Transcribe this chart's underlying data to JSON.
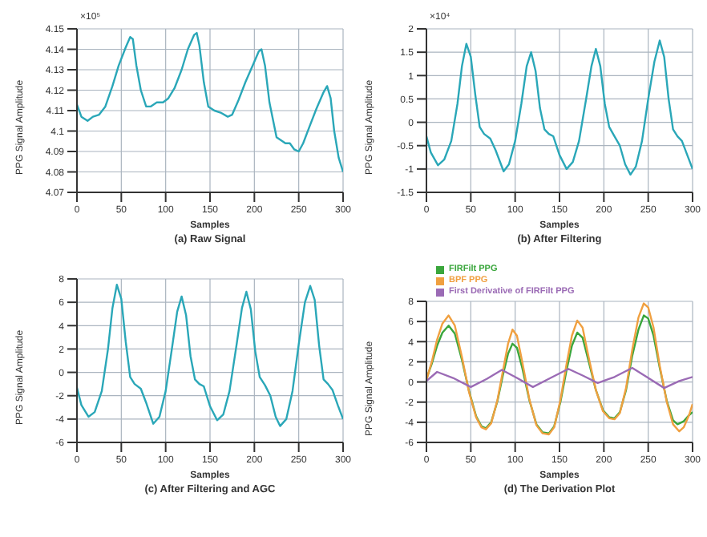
{
  "chart_data": [
    {
      "type": "line",
      "title": "(a) Raw Signal",
      "xlabel": "Samples",
      "ylabel": "PPG Signal Amplitude",
      "annotations": [
        "×10⁵"
      ],
      "xlim": [
        0,
        300
      ],
      "xticks": [
        0,
        50,
        100,
        150,
        200,
        250,
        300
      ],
      "ylim": [
        4.07,
        4.15
      ],
      "yticks": [
        4.07,
        4.08,
        4.09,
        4.1,
        4.11,
        4.12,
        4.13,
        4.14,
        4.15
      ],
      "grid": true,
      "marker": "none",
      "series": [
        {
          "color": "#2aa7b8",
          "x": [
            0,
            5,
            12,
            18,
            25,
            32,
            40,
            47,
            55,
            60,
            63,
            67,
            72,
            78,
            83,
            90,
            97,
            103,
            110,
            118,
            125,
            132,
            135,
            138,
            143,
            148,
            155,
            162,
            170,
            175,
            182,
            190,
            198,
            205,
            208,
            212,
            217,
            225,
            235,
            240,
            245,
            250,
            255,
            262,
            270,
            278,
            282,
            286,
            290,
            295,
            300
          ],
          "values": [
            4.113,
            4.107,
            4.105,
            4.107,
            4.108,
            4.112,
            4.122,
            4.132,
            4.141,
            4.146,
            4.145,
            4.132,
            4.12,
            4.112,
            4.112,
            4.114,
            4.114,
            4.116,
            4.121,
            4.13,
            4.14,
            4.147,
            4.148,
            4.142,
            4.124,
            4.112,
            4.11,
            4.109,
            4.107,
            4.108,
            4.115,
            4.124,
            4.132,
            4.139,
            4.14,
            4.132,
            4.114,
            4.097,
            4.094,
            4.094,
            4.091,
            4.09,
            4.094,
            4.102,
            4.111,
            4.119,
            4.122,
            4.116,
            4.1,
            4.087,
            4.08
          ]
        }
      ]
    },
    {
      "type": "line",
      "title": "(b) After Filtering",
      "xlabel": "Samples",
      "ylabel": "PPG Signal Amplitude",
      "annotations": [
        "×10⁴"
      ],
      "xlim": [
        0,
        300
      ],
      "xticks": [
        0,
        50,
        100,
        150,
        200,
        250,
        300
      ],
      "ylim": [
        -1.5,
        2
      ],
      "yticks": [
        -1.5,
        -1,
        -0.5,
        0,
        0.5,
        1,
        1.5,
        2
      ],
      "grid": true,
      "marker": "none",
      "series": [
        {
          "color": "#2aa7b8",
          "x": [
            0,
            5,
            13,
            20,
            28,
            35,
            40,
            45,
            50,
            55,
            60,
            65,
            72,
            78,
            87,
            93,
            100,
            107,
            113,
            118,
            123,
            128,
            133,
            138,
            143,
            150,
            158,
            165,
            172,
            180,
            186,
            191,
            196,
            201,
            206,
            212,
            218,
            224,
            230,
            236,
            243,
            250,
            257,
            263,
            268,
            273,
            278,
            283,
            288,
            294,
            300
          ],
          "values": [
            -0.3,
            -0.65,
            -0.92,
            -0.8,
            -0.4,
            0.4,
            1.2,
            1.68,
            1.4,
            0.6,
            -0.1,
            -0.25,
            -0.35,
            -0.6,
            -1.05,
            -0.9,
            -0.4,
            0.4,
            1.2,
            1.5,
            1.1,
            0.3,
            -0.15,
            -0.25,
            -0.3,
            -0.7,
            -1.0,
            -0.85,
            -0.4,
            0.5,
            1.2,
            1.57,
            1.2,
            0.4,
            -0.1,
            -0.3,
            -0.5,
            -0.9,
            -1.12,
            -0.95,
            -0.4,
            0.5,
            1.3,
            1.75,
            1.4,
            0.5,
            -0.15,
            -0.3,
            -0.4,
            -0.7,
            -1.0
          ]
        }
      ]
    },
    {
      "type": "line",
      "title": "(c) After Filtering and AGC",
      "xlabel": "Samples",
      "ylabel": "PPG Signal Amplitude",
      "xlim": [
        0,
        300
      ],
      "xticks": [
        0,
        50,
        100,
        150,
        200,
        250,
        300
      ],
      "ylim": [
        -6,
        8
      ],
      "yticks": [
        -6,
        -4,
        -2,
        0,
        2,
        4,
        6,
        8
      ],
      "grid": true,
      "marker": "none",
      "series": [
        {
          "color": "#2aa7b8",
          "x": [
            0,
            5,
            13,
            20,
            28,
            35,
            40,
            45,
            50,
            55,
            60,
            65,
            72,
            78,
            86,
            93,
            100,
            107,
            113,
            118,
            123,
            128,
            133,
            138,
            143,
            150,
            158,
            165,
            172,
            180,
            186,
            191,
            196,
            201,
            206,
            212,
            218,
            224,
            229,
            236,
            243,
            250,
            257,
            263,
            268,
            273,
            278,
            283,
            288,
            294,
            300
          ],
          "values": [
            -1.3,
            -2.8,
            -3.8,
            -3.4,
            -1.6,
            2.0,
            5.5,
            7.5,
            6.3,
            2.6,
            -0.4,
            -1.0,
            -1.4,
            -2.6,
            -4.4,
            -3.8,
            -1.6,
            2.0,
            5.2,
            6.5,
            4.9,
            1.4,
            -0.6,
            -1.0,
            -1.2,
            -2.9,
            -4.1,
            -3.6,
            -1.6,
            2.4,
            5.5,
            6.9,
            5.4,
            1.8,
            -0.4,
            -1.1,
            -2.0,
            -3.8,
            -4.6,
            -4.0,
            -1.6,
            2.4,
            6.0,
            7.4,
            6.2,
            2.3,
            -0.6,
            -1.0,
            -1.5,
            -2.8,
            -4.0
          ]
        }
      ]
    },
    {
      "type": "line",
      "title": "(d) The Derivation Plot",
      "xlabel": "Samples",
      "ylabel": "PPG Signal Amplitude",
      "xlim": [
        0,
        300
      ],
      "xticks": [
        0,
        50,
        100,
        150,
        200,
        250,
        300
      ],
      "ylim": [
        -6,
        8
      ],
      "yticks": [
        -6,
        -4,
        -2,
        0,
        2,
        4,
        6,
        8
      ],
      "grid": true,
      "marker": "none",
      "legend": "top",
      "series": [
        {
          "name": "FIRFilt PPG",
          "color": "#3aa63c",
          "x": [
            0,
            6,
            12,
            18,
            25,
            32,
            40,
            48,
            56,
            62,
            67,
            73,
            80,
            86,
            92,
            97,
            102,
            108,
            116,
            124,
            131,
            138,
            144,
            151,
            158,
            164,
            170,
            176,
            183,
            191,
            199,
            206,
            212,
            218,
            225,
            232,
            239,
            245,
            250,
            256,
            263,
            271,
            278,
            283,
            290,
            296,
            300
          ],
          "values": [
            0.3,
            1.8,
            3.6,
            4.9,
            5.6,
            4.8,
            2.2,
            -0.9,
            -3.4,
            -4.4,
            -4.6,
            -4.0,
            -1.9,
            0.6,
            2.8,
            3.8,
            3.4,
            1.4,
            -1.8,
            -4.2,
            -5.0,
            -5.1,
            -4.4,
            -2.0,
            1.2,
            3.6,
            4.9,
            4.4,
            2.0,
            -0.8,
            -2.8,
            -3.5,
            -3.6,
            -3.0,
            -0.8,
            2.6,
            5.2,
            6.6,
            6.3,
            4.6,
            1.4,
            -1.9,
            -3.8,
            -4.2,
            -3.9,
            -3.3,
            -3.0
          ]
        },
        {
          "name": "BPF PPG",
          "color": "#f0a040",
          "x": [
            0,
            6,
            12,
            18,
            25,
            32,
            40,
            48,
            56,
            62,
            67,
            73,
            80,
            86,
            92,
            97,
            102,
            108,
            116,
            124,
            131,
            138,
            144,
            151,
            158,
            164,
            170,
            176,
            183,
            191,
            199,
            206,
            212,
            218,
            225,
            232,
            239,
            245,
            250,
            256,
            263,
            271,
            278,
            285,
            290,
            296,
            300
          ],
          "values": [
            0.2,
            2.0,
            4.2,
            5.8,
            6.6,
            5.6,
            2.5,
            -1.0,
            -3.5,
            -4.5,
            -4.7,
            -4.1,
            -1.8,
            1.0,
            3.8,
            5.2,
            4.6,
            2.0,
            -1.7,
            -4.3,
            -5.1,
            -5.2,
            -4.5,
            -1.8,
            1.8,
            4.6,
            6.1,
            5.4,
            2.4,
            -0.8,
            -2.9,
            -3.6,
            -3.7,
            -3.1,
            -0.6,
            3.2,
            6.4,
            7.8,
            7.4,
            5.4,
            1.6,
            -2.0,
            -4.2,
            -4.9,
            -4.5,
            -3.3,
            -2.2
          ]
        },
        {
          "name": "First Derivative of FIRFilt PPG",
          "color": "#9b6bb5",
          "x": [
            0,
            12,
            30,
            50,
            68,
            85,
            102,
            120,
            140,
            160,
            177,
            193,
            212,
            232,
            250,
            268,
            285,
            300
          ],
          "values": [
            0.1,
            1.0,
            0.4,
            -0.5,
            0.3,
            1.2,
            0.4,
            -0.5,
            0.4,
            1.3,
            0.6,
            -0.1,
            0.5,
            1.4,
            0.4,
            -0.6,
            0.1,
            0.5
          ]
        }
      ]
    }
  ]
}
